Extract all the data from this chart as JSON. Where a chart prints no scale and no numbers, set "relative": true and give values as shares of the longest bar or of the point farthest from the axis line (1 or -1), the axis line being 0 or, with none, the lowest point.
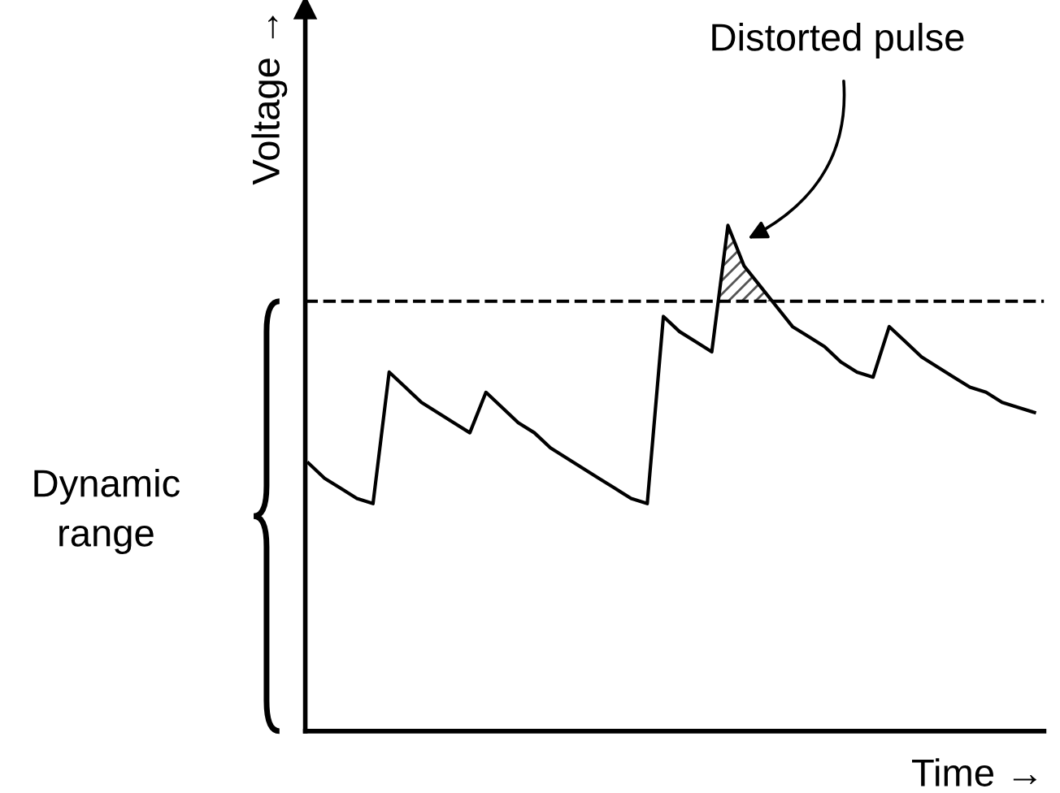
{
  "chart_data": {
    "type": "line",
    "relative": true,
    "xlabel": "Time →",
    "ylabel": "Voltage →",
    "categories": [
      null,
      null,
      null,
      null,
      null,
      null,
      null,
      null,
      null,
      null,
      null,
      null,
      null,
      null,
      null,
      null,
      null,
      null,
      null,
      null,
      null,
      null,
      null,
      null,
      null,
      null,
      null,
      null,
      null,
      null,
      null,
      null,
      null,
      null,
      null,
      null,
      null,
      null,
      null,
      null,
      null,
      null,
      null,
      null,
      null,
      null
    ],
    "series": [
      {
        "color": "#000000",
        "values": [
          0.53,
          0.5,
          0.48,
          0.46,
          0.45,
          0.71,
          0.68,
          0.65,
          0.63,
          0.61,
          0.59,
          0.67,
          0.64,
          0.61,
          0.59,
          0.56,
          0.54,
          0.52,
          0.5,
          0.48,
          0.46,
          0.45,
          0.82,
          0.79,
          0.77,
          0.75,
          1.0,
          0.92,
          0.88,
          0.84,
          0.8,
          0.78,
          0.76,
          0.73,
          0.71,
          0.7,
          0.8,
          0.77,
          0.74,
          0.72,
          0.7,
          0.68,
          0.67,
          0.65,
          0.64,
          0.63
        ]
      }
    ],
    "ref_lines": [
      {
        "axis": "y",
        "value": 0.85,
        "line_style": "dashed",
        "color": "#000000"
      }
    ],
    "annotations": [
      "Distorted pulse",
      "Dynamic\nrange"
    ],
    "marker": "none",
    "line_style": "solid",
    "legend": false
  }
}
